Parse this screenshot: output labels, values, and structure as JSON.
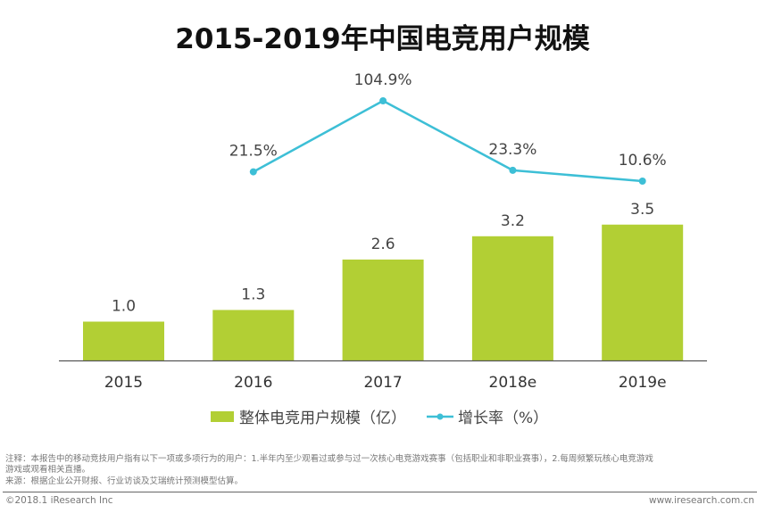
{
  "chart_data": {
    "type": "bar",
    "title": "2015-2019年中国电竞用户规模",
    "categories": [
      "2015",
      "2016",
      "2017",
      "2018e",
      "2019e"
    ],
    "series": [
      {
        "name": "整体电竞用户规模（亿）",
        "type": "bar",
        "color": "#b2cf34",
        "values": [
          1.0,
          1.3,
          2.6,
          3.2,
          3.5
        ],
        "labels": [
          "1.0",
          "1.3",
          "2.6",
          "3.2",
          "3.5"
        ]
      },
      {
        "name": "增长率（%）",
        "type": "line",
        "color": "#3dbfd6",
        "values": [
          null,
          21.5,
          104.9,
          23.3,
          10.6
        ],
        "labels": [
          "",
          "21.5%",
          "104.9%",
          "23.3%",
          "10.6%"
        ]
      }
    ],
    "xlabel": "",
    "ylabel": "",
    "ylim": [
      0,
      4
    ],
    "y2lim": [
      -60,
      110
    ],
    "grid": false,
    "legend_position": "bottom",
    "legend": [
      "整体电竞用户规模（亿）",
      "增长率（%）"
    ]
  },
  "footnote": {
    "note_line1": "注释：本报告中的移动竞技用户指有以下一项或多项行为的用户：1.半年内至少观看过或参与过一次核心电竞游戏赛事（包括职业和非职业赛事），2.每周频繁玩核心电竞游戏",
    "note_line2": "游戏或观看相关直播。",
    "source": "来源：根据企业公开财报、行业访谈及艾瑞统计预测模型估算。"
  },
  "copyright": "©2018.1 iResearch Inc",
  "website": "www.iresearch.com.cn"
}
